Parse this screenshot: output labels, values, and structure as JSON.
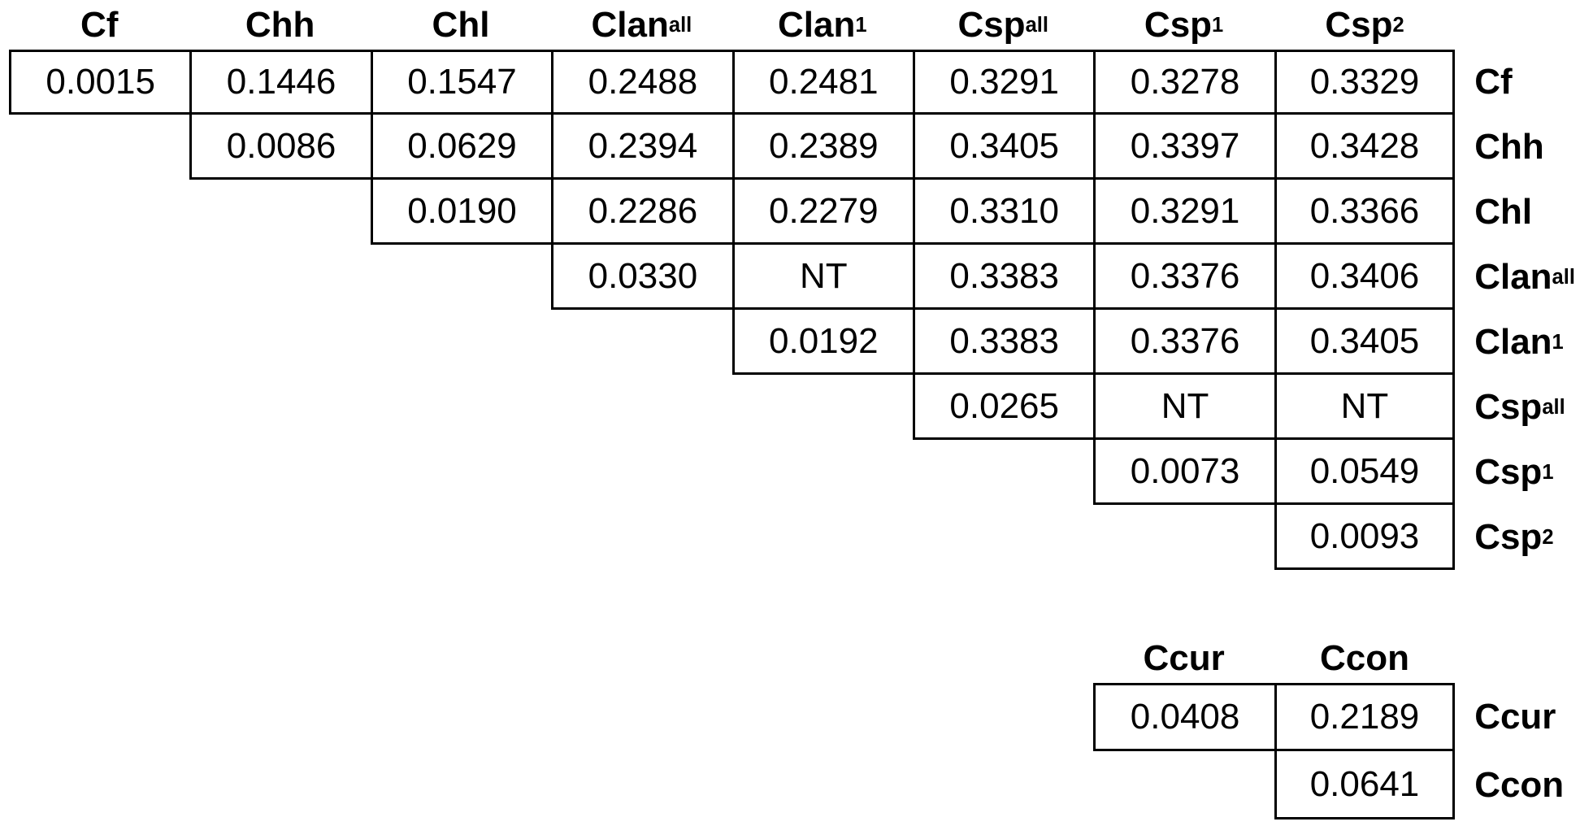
{
  "figure": {
    "background_color": "#ffffff",
    "text_color": "#000000",
    "border_color": "#000000",
    "not_tested_label": "NT"
  },
  "matrices": [
    {
      "name": "pairwise-distance-matrix-main",
      "col_headers": [
        {
          "base": "Cf",
          "sub": ""
        },
        {
          "base": "Chh",
          "sub": ""
        },
        {
          "base": "Chl",
          "sub": ""
        },
        {
          "base": "Clan",
          "sub": "all"
        },
        {
          "base": "Clan",
          "sub": "1"
        },
        {
          "base": "Csp",
          "sub": "all"
        },
        {
          "base": "Csp",
          "sub": "1"
        },
        {
          "base": "Csp",
          "sub": "2"
        }
      ],
      "row_headers": [
        {
          "base": "Cf",
          "sub": ""
        },
        {
          "base": "Chh",
          "sub": ""
        },
        {
          "base": "Chl",
          "sub": ""
        },
        {
          "base": "Clan",
          "sub": "all"
        },
        {
          "base": "Clan",
          "sub": "1"
        },
        {
          "base": "Csp",
          "sub": "all"
        },
        {
          "base": "Csp",
          "sub": "1"
        },
        {
          "base": "Csp",
          "sub": "2"
        }
      ],
      "rows": [
        [
          "0.0015",
          "0.1446",
          "0.1547",
          "0.2488",
          "0.2481",
          "0.3291",
          "0.3278",
          "0.3329"
        ],
        [
          null,
          "0.0086",
          "0.0629",
          "0.2394",
          "0.2389",
          "0.3405",
          "0.3397",
          "0.3428"
        ],
        [
          null,
          null,
          "0.0190",
          "0.2286",
          "0.2279",
          "0.3310",
          "0.3291",
          "0.3366"
        ],
        [
          null,
          null,
          null,
          "0.0330",
          "NT",
          "0.3383",
          "0.3376",
          "0.3406"
        ],
        [
          null,
          null,
          null,
          null,
          "0.0192",
          "0.3383",
          "0.3376",
          "0.3405"
        ],
        [
          null,
          null,
          null,
          null,
          null,
          "0.0265",
          "NT",
          "NT"
        ],
        [
          null,
          null,
          null,
          null,
          null,
          null,
          "0.0073",
          "0.0549"
        ],
        [
          null,
          null,
          null,
          null,
          null,
          null,
          null,
          "0.0093"
        ]
      ]
    },
    {
      "name": "pairwise-distance-matrix-secondary",
      "col_headers": [
        {
          "base": "Ccur",
          "sub": ""
        },
        {
          "base": "Ccon",
          "sub": ""
        }
      ],
      "row_headers": [
        {
          "base": "Ccur",
          "sub": ""
        },
        {
          "base": "Ccon",
          "sub": ""
        }
      ],
      "rows": [
        [
          "0.0408",
          "0.2189"
        ],
        [
          null,
          "0.0641"
        ]
      ]
    }
  ]
}
